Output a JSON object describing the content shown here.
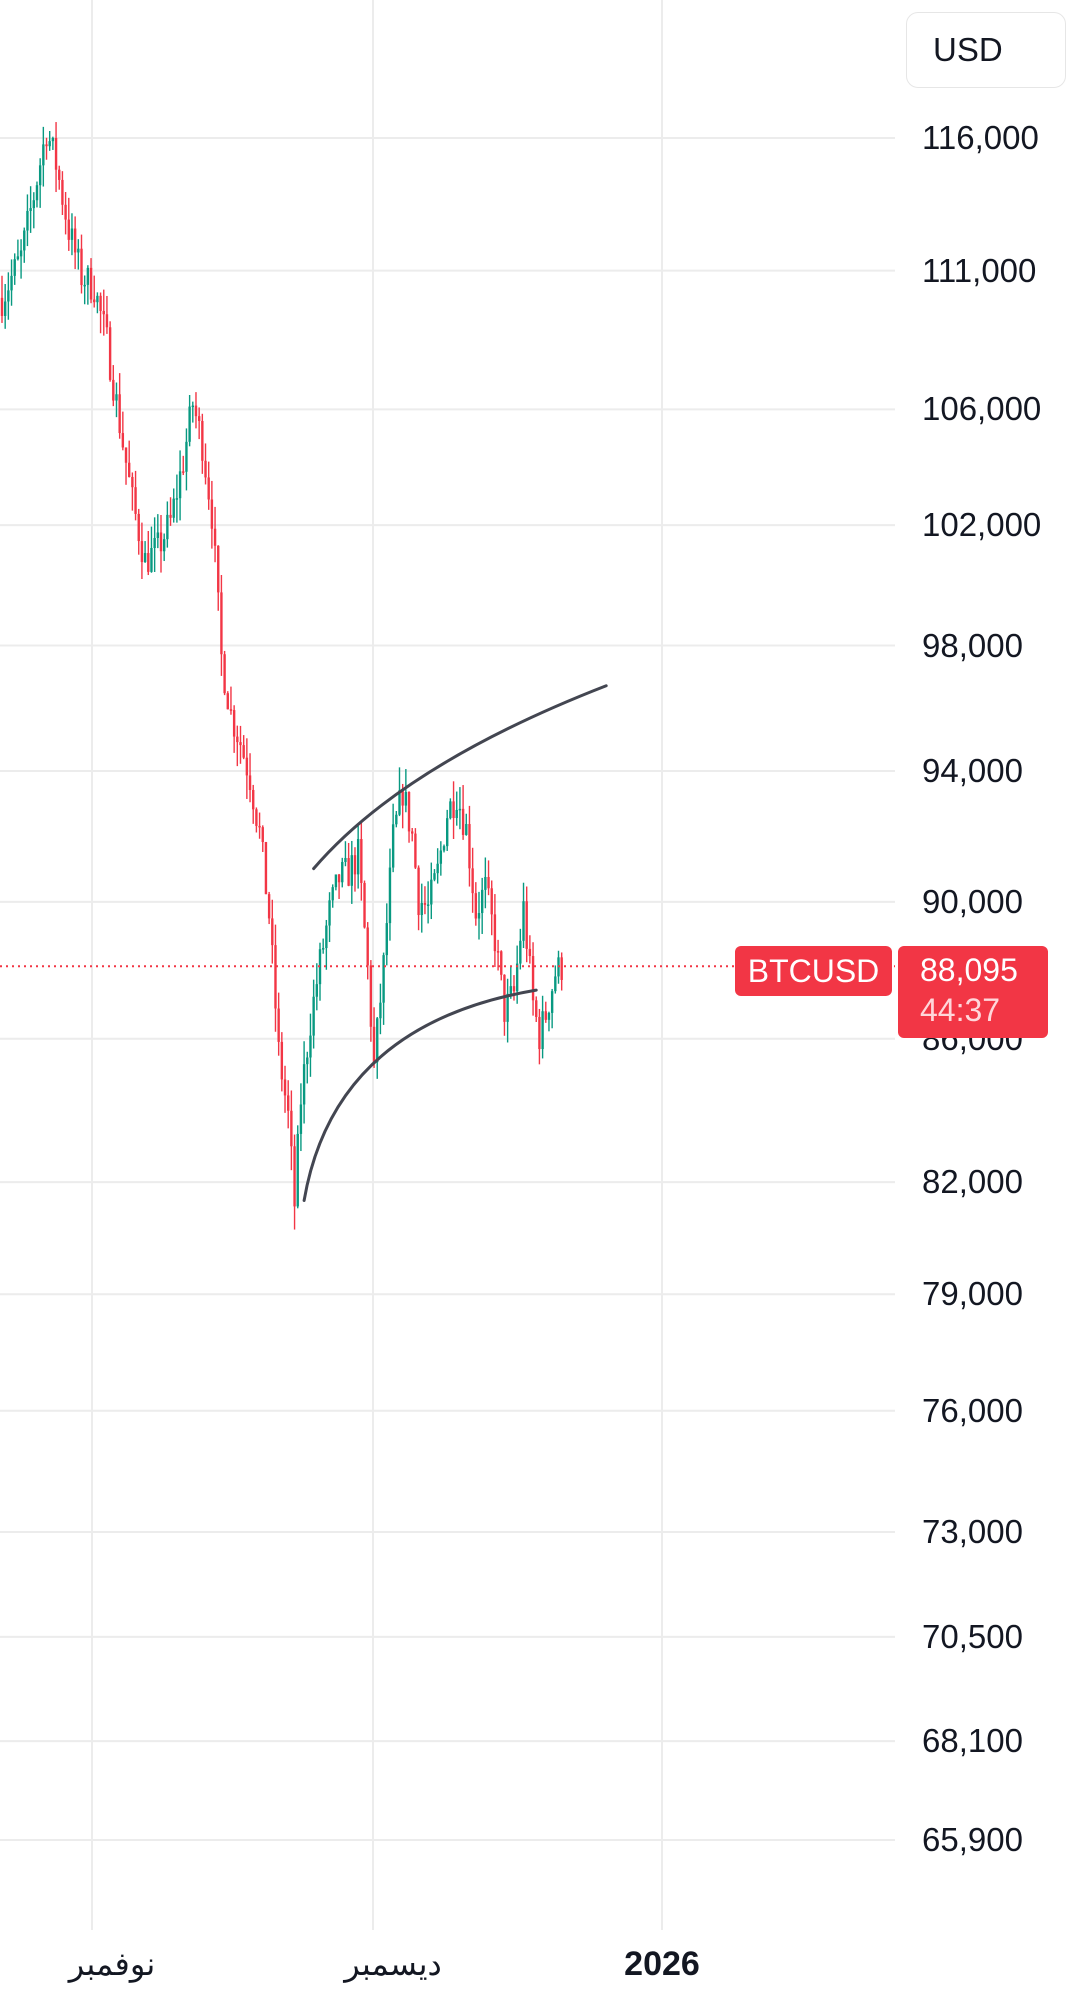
{
  "currency": "USD",
  "colors": {
    "up": "#089981",
    "down": "#f23645",
    "grid": "#ececec",
    "trendline": "#434651",
    "last_price_line": "#f23645"
  },
  "last_price": {
    "symbol": "BTCUSD",
    "price_label": "88,095",
    "value": 88095,
    "countdown": "44:37"
  },
  "chart_data": {
    "type": "candlestick",
    "symbol": "BTCUSD",
    "price_axis_ticks": [
      {
        "value": 116000,
        "label": "116,000"
      },
      {
        "value": 111000,
        "label": "111,000"
      },
      {
        "value": 106000,
        "label": "106,000"
      },
      {
        "value": 102000,
        "label": "102,000"
      },
      {
        "value": 98000,
        "label": "98,000"
      },
      {
        "value": 94000,
        "label": "94,000"
      },
      {
        "value": 90000,
        "label": "90,000"
      },
      {
        "value": 86000,
        "label": "86,000"
      },
      {
        "value": 82000,
        "label": "82,000"
      },
      {
        "value": 79000,
        "label": "79,000"
      },
      {
        "value": 76000,
        "label": "76,000"
      },
      {
        "value": 73000,
        "label": "73,000"
      },
      {
        "value": 70500,
        "label": "70,500"
      },
      {
        "value": 68100,
        "label": "68,100"
      },
      {
        "value": 65900,
        "label": "65,900"
      }
    ],
    "time_axis_ticks": [
      {
        "label": "نوفمبر",
        "bold": false
      },
      {
        "label": "ديسمبر",
        "bold": false
      },
      {
        "label": "2026",
        "bold": true
      }
    ],
    "y_scale": "log",
    "grid": true,
    "series_close_path": [
      [
        0,
        110000
      ],
      [
        6,
        111500
      ],
      [
        10,
        113800
      ],
      [
        14,
        116300
      ],
      [
        17,
        115000
      ],
      [
        21,
        112500
      ],
      [
        25,
        110800
      ],
      [
        29,
        110400
      ],
      [
        33,
        108400
      ],
      [
        37,
        105500
      ],
      [
        41,
        102800
      ],
      [
        45,
        100800
      ],
      [
        49,
        101200
      ],
      [
        53,
        102100
      ],
      [
        57,
        104200
      ],
      [
        60,
        106200
      ],
      [
        63,
        104800
      ],
      [
        66,
        102400
      ],
      [
        69,
        97600
      ],
      [
        72,
        95800
      ],
      [
        75,
        94900
      ],
      [
        78,
        93800
      ],
      [
        81,
        92100
      ],
      [
        84,
        89600
      ],
      [
        87,
        85600
      ],
      [
        90,
        83800
      ],
      [
        92,
        81400
      ],
      [
        94,
        84300
      ],
      [
        97,
        86500
      ],
      [
        100,
        88200
      ],
      [
        103,
        89700
      ],
      [
        106,
        90700
      ],
      [
        109,
        90900
      ],
      [
        112,
        91400
      ],
      [
        115,
        88000
      ],
      [
        117,
        85200
      ],
      [
        120,
        88100
      ],
      [
        123,
        91900
      ],
      [
        126,
        93400
      ],
      [
        129,
        92000
      ],
      [
        131,
        90100
      ],
      [
        134,
        89800
      ],
      [
        137,
        90900
      ],
      [
        140,
        92700
      ],
      [
        143,
        93300
      ],
      [
        146,
        92200
      ],
      [
        149,
        89700
      ],
      [
        152,
        90400
      ],
      [
        155,
        88900
      ],
      [
        158,
        86800
      ],
      [
        161,
        87300
      ],
      [
        164,
        89800
      ],
      [
        167,
        87000
      ],
      [
        169,
        86100
      ],
      [
        171,
        86700
      ],
      [
        174,
        87900
      ],
      [
        176,
        88095
      ]
    ],
    "trendlines": [
      {
        "name": "upper",
        "points": [
          [
            98,
            91000
          ],
          [
            135,
            94000
          ],
          [
            190,
            96700
          ]
        ]
      },
      {
        "name": "lower",
        "points": [
          [
            95,
            81500
          ],
          [
            118,
            85400
          ],
          [
            168,
            87400
          ]
        ]
      }
    ]
  }
}
